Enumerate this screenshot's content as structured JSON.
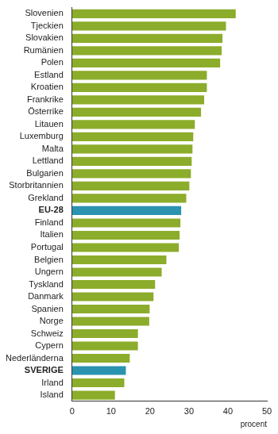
{
  "chart_data": {
    "type": "bar",
    "orientation": "horizontal",
    "categories": [
      "Slovenien",
      "Tjeckien",
      "Slovakien",
      "Rumänien",
      "Polen",
      "Estland",
      "Kroatien",
      "Frankrike",
      "Österrike",
      "Litauen",
      "Luxemburg",
      "Malta",
      "Lettland",
      "Bulgarien",
      "Storbritannien",
      "Grekland",
      "EU-28",
      "Finland",
      "Italien",
      "Portugal",
      "Belgien",
      "Ungern",
      "Tyskland",
      "Danmark",
      "Spanien",
      "Norge",
      "Schweiz",
      "Cypern",
      "Nederländerna",
      "SVERIGE",
      "Irland",
      "Island"
    ],
    "values": [
      42,
      39.5,
      38.6,
      38.4,
      38,
      34.6,
      34.6,
      33.9,
      33.1,
      31.5,
      31.1,
      30.9,
      30.7,
      30.5,
      30.1,
      29.3,
      28,
      27.8,
      27.6,
      27.4,
      24.2,
      23,
      21.3,
      20.9,
      19.9,
      19.8,
      16.9,
      16.9,
      14.8,
      13.8,
      13.4,
      11
    ],
    "color": "#8cac2b",
    "colors": [
      "#8cac2b",
      "#8cac2b",
      "#8cac2b",
      "#8cac2b",
      "#8cac2b",
      "#8cac2b",
      "#8cac2b",
      "#8cac2b",
      "#8cac2b",
      "#8cac2b",
      "#8cac2b",
      "#8cac2b",
      "#8cac2b",
      "#8cac2b",
      "#8cac2b",
      "#8cac2b",
      "#2a93b0",
      "#8cac2b",
      "#8cac2b",
      "#8cac2b",
      "#8cac2b",
      "#8cac2b",
      "#8cac2b",
      "#8cac2b",
      "#8cac2b",
      "#8cac2b",
      "#8cac2b",
      "#8cac2b",
      "#8cac2b",
      "#2a93b0",
      "#8cac2b",
      "#8cac2b"
    ],
    "x_label": "procent",
    "xlim": [
      0,
      50
    ],
    "xticks": [
      0,
      10,
      20,
      30,
      40,
      50
    ],
    "grid": false
  }
}
